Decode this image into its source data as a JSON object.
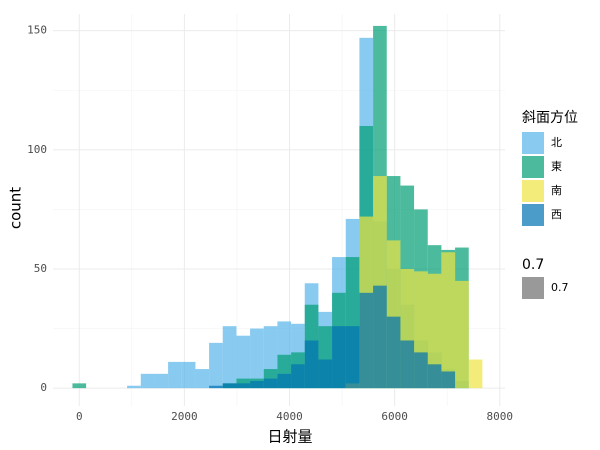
{
  "chart_data": {
    "type": "histogram",
    "x_label": "日射量",
    "y_label": "count",
    "bins": [
      -130,
      130,
      390,
      650,
      910,
      1170,
      1430,
      1690,
      1950,
      2210,
      2470,
      2730,
      2990,
      3250,
      3510,
      3770,
      4030,
      4290,
      4550,
      4810,
      5070,
      5330,
      5590,
      5850,
      6110,
      6370,
      6630,
      6890,
      7150,
      7410,
      7670
    ],
    "series": [
      {
        "name": "北",
        "color": "#56B4E9",
        "values": [
          0,
          0,
          0,
          0,
          1,
          6,
          6,
          11,
          11,
          8,
          19,
          26,
          22,
          25,
          26,
          28,
          27,
          44,
          32,
          55,
          71,
          147,
          70,
          50,
          35,
          20,
          15,
          8,
          3,
          0
        ]
      },
      {
        "name": "東",
        "color": "#009E73",
        "values": [
          2,
          0,
          0,
          0,
          0,
          0,
          0,
          0,
          0,
          0,
          0,
          2,
          4,
          4,
          8,
          14,
          15,
          35,
          26,
          40,
          55,
          110,
          152,
          89,
          85,
          75,
          60,
          58,
          59,
          0
        ]
      },
      {
        "name": "南",
        "color": "#F0E442",
        "values": [
          0,
          0,
          0,
          0,
          0,
          0,
          0,
          0,
          0,
          0,
          0,
          0,
          0,
          0,
          0,
          0,
          0,
          0,
          0,
          0,
          2,
          72,
          89,
          62,
          50,
          49,
          48,
          57,
          45,
          12
        ]
      },
      {
        "name": "西",
        "color": "#0072B2",
        "values": [
          0,
          0,
          0,
          0,
          0,
          0,
          0,
          0,
          0,
          0,
          1,
          2,
          2,
          3,
          4,
          6,
          10,
          20,
          12,
          26,
          26,
          40,
          43,
          30,
          20,
          15,
          10,
          7,
          0,
          0
        ]
      }
    ],
    "legend_title": "斜面方位",
    "alpha": 0.7,
    "alpha_legend": {
      "title": "0.7",
      "label": "0.7",
      "color": "#999999"
    },
    "xlim": [
      -500,
      8100
    ],
    "ylim": [
      -7.5,
      157
    ],
    "xticks": [
      0,
      2000,
      4000,
      6000,
      8000
    ],
    "yticks": [
      0,
      50,
      100,
      150
    ],
    "minor_xticks": [
      1000,
      3000,
      5000,
      7000
    ],
    "minor_yticks": [
      25,
      75,
      125
    ],
    "grid": true
  }
}
